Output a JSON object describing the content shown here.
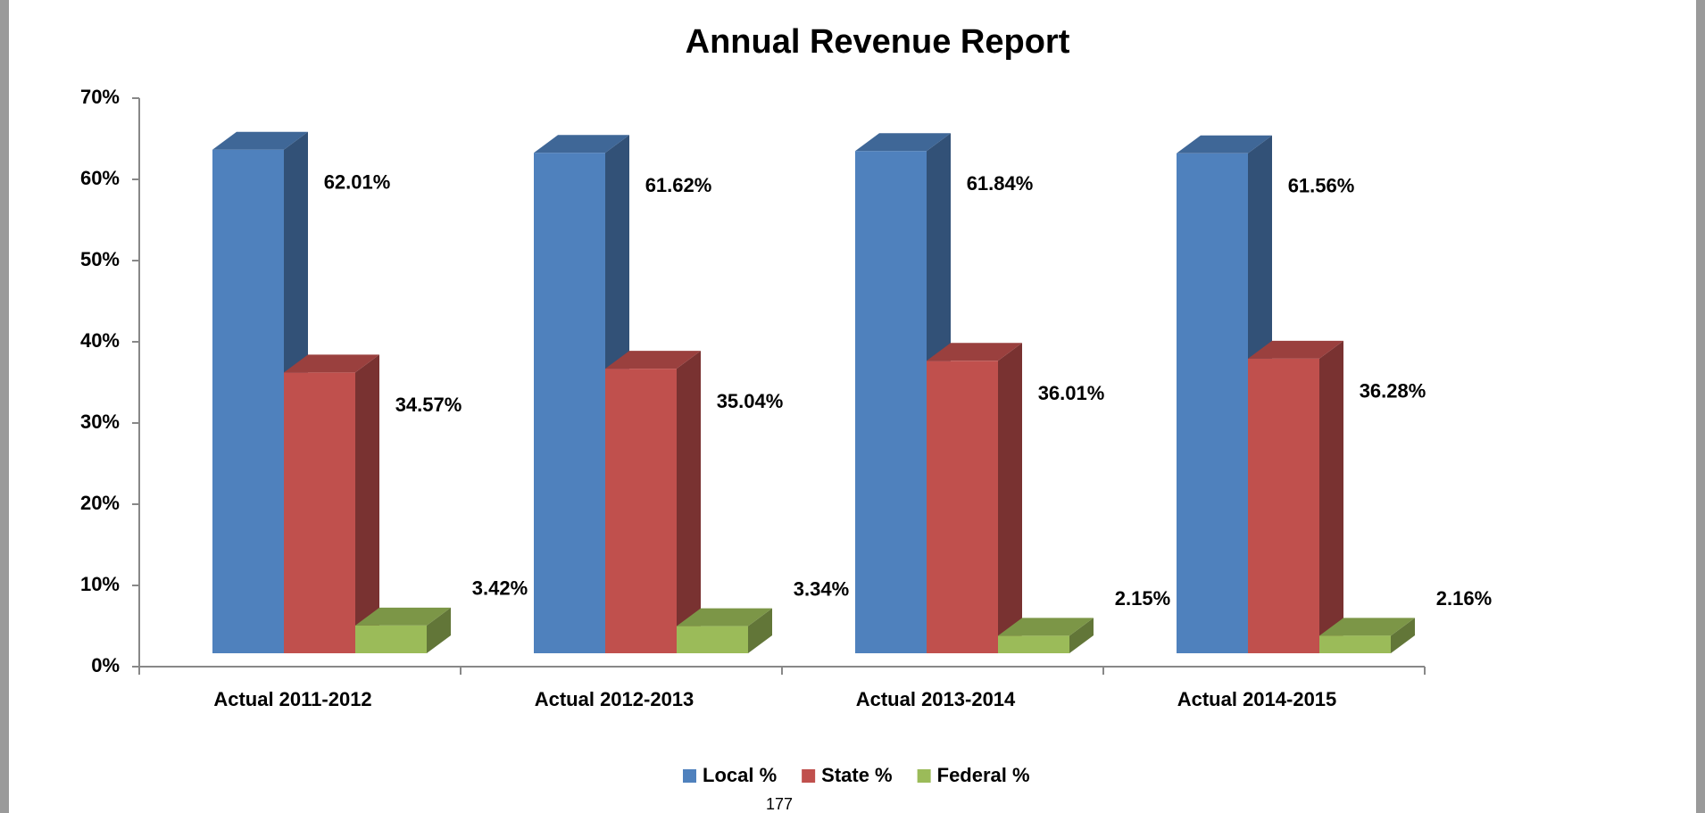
{
  "chart_data": {
    "type": "bar3d",
    "title": "Annual Revenue Report",
    "categories": [
      "Actual 2011-2012",
      "Actual 2012-2013",
      "Actual 2013-2014",
      "Actual  2014-2015"
    ],
    "series": [
      {
        "name": "Local %",
        "color": "#4f81bd",
        "values": [
          62.01,
          61.62,
          61.84,
          61.56
        ],
        "value_labels": [
          "62.01%",
          "61.62%",
          "61.84%",
          "61.56%"
        ]
      },
      {
        "name": "State %",
        "color": "#c0504d",
        "values": [
          34.57,
          35.04,
          36.01,
          36.28
        ],
        "value_labels": [
          "34.57%",
          "35.04%",
          "36.01%",
          "36.28%"
        ]
      },
      {
        "name": "Federal %",
        "color": "#9bbb59",
        "values": [
          3.42,
          3.34,
          2.15,
          2.16
        ],
        "value_labels": [
          "3.42%",
          "3.34%",
          "2.15%",
          "2.16%"
        ]
      }
    ],
    "ylim": [
      0,
      70
    ],
    "yticks": [
      {
        "value": 0,
        "label": "0%"
      },
      {
        "value": 10,
        "label": "10%"
      },
      {
        "value": 20,
        "label": "20%"
      },
      {
        "value": 30,
        "label": "30%"
      },
      {
        "value": 40,
        "label": "40%"
      },
      {
        "value": 50,
        "label": "50%"
      },
      {
        "value": 60,
        "label": "60%"
      },
      {
        "value": 70,
        "label": "70%"
      }
    ],
    "legend": "bottom"
  },
  "footer": "177"
}
